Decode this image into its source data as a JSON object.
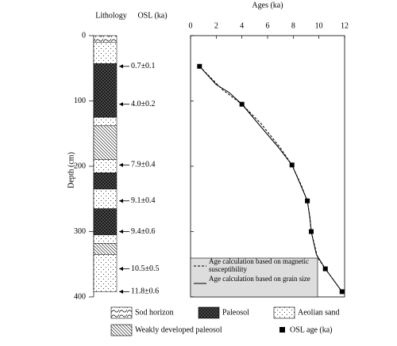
{
  "chart_data": {
    "type": "line",
    "xlabel": "Ages (ka)",
    "ylabel": "Depth (cm)",
    "xlim": [
      0,
      12
    ],
    "xticks": [
      0,
      2,
      4,
      6,
      8,
      10,
      12
    ],
    "ylim": [
      0,
      400
    ],
    "yticks": [
      0,
      100,
      200,
      300,
      400
    ],
    "y_inverted": true,
    "x_axis_position": "top",
    "series": [
      {
        "name": "OSL age (ka)",
        "color": "#000000",
        "marker": "square",
        "x": [
          0.7,
          4.0,
          7.9,
          9.1,
          9.4,
          10.5,
          11.8
        ],
        "values": [
          47,
          105,
          198,
          253,
          300,
          357,
          392
        ],
        "value_labels": [
          "0.7±0.1",
          "4.0±0.2",
          "7.9±0.4",
          "9.1±0.4",
          "9.4±0.6",
          "10.5±0.5",
          "11.8±0.6"
        ]
      },
      {
        "name": "Age calculation based on magnetic susceptibility",
        "color": "#000000",
        "dash": true,
        "x": [
          0.7,
          2.5,
          4.0,
          5.5,
          7.0,
          7.9,
          8.6,
          9.1,
          9.3,
          9.4,
          9.9,
          10.5,
          11.8
        ],
        "values": [
          47,
          83,
          105,
          135,
          172,
          198,
          228,
          253,
          278,
          300,
          340,
          357,
          392
        ]
      },
      {
        "name": "Age calculation based on grain size",
        "color": "#000000",
        "dash": false,
        "x": [
          0.7,
          2.0,
          3.0,
          4.0,
          5.5,
          6.8,
          7.9,
          8.5,
          9.1,
          9.3,
          9.4,
          9.8,
          10.5,
          11.8
        ],
        "values": [
          47,
          75,
          87,
          105,
          140,
          170,
          198,
          225,
          253,
          280,
          300,
          335,
          357,
          392
        ]
      }
    ]
  },
  "lithology": {
    "title": "Lithology",
    "osl_title": "OSL (ka)",
    "legend": [
      "Sod horizon",
      "Paleosol",
      "Aeolian sand",
      "Weakly developed paleosol"
    ],
    "layers": [
      {
        "top": 0,
        "bottom": 10,
        "unit": "Sod horizon"
      },
      {
        "top": 10,
        "bottom": 43,
        "unit": "Aeolian sand"
      },
      {
        "top": 43,
        "bottom": 125,
        "unit": "Paleosol"
      },
      {
        "top": 125,
        "bottom": 138,
        "unit": "Aeolian sand"
      },
      {
        "top": 138,
        "bottom": 190,
        "unit": "Weakly developed paleosol"
      },
      {
        "top": 190,
        "bottom": 210,
        "unit": "Aeolian sand"
      },
      {
        "top": 210,
        "bottom": 235,
        "unit": "Paleosol"
      },
      {
        "top": 235,
        "bottom": 265,
        "unit": "Aeolian sand"
      },
      {
        "top": 265,
        "bottom": 305,
        "unit": "Paleosol"
      },
      {
        "top": 305,
        "bottom": 318,
        "unit": "Aeolian sand"
      },
      {
        "top": 318,
        "bottom": 335,
        "unit": "Weakly developed paleosol"
      },
      {
        "top": 335,
        "bottom": 392,
        "unit": "Aeolian sand"
      }
    ]
  }
}
